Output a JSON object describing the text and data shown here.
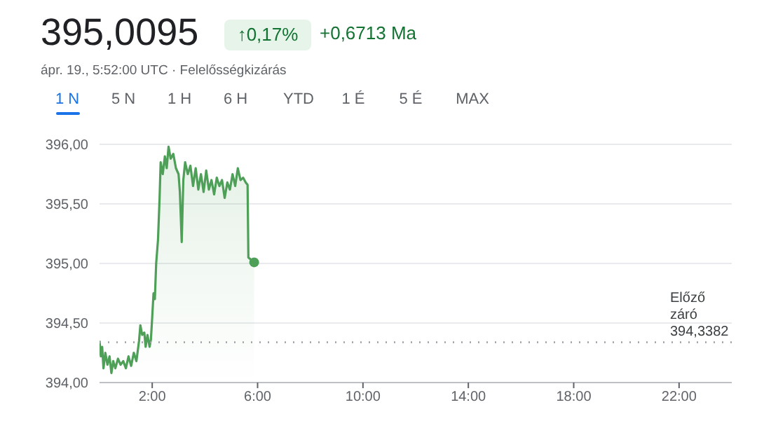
{
  "chart_data": {
    "type": "area",
    "title": "395,0095",
    "annotations": [
      "↑0,17%",
      "+0,6713 Ma",
      "ápr. 19., 5:52:00 UTC · Felelősségkizárás",
      "1 N",
      "5 N",
      "1 H",
      "6 H",
      "YTD",
      "1 É",
      "5 É",
      "MAX"
    ],
    "x": [
      0,
      0.05,
      0.1,
      0.15,
      0.22,
      0.3,
      0.38,
      0.45,
      0.52,
      0.6,
      0.7,
      0.8,
      0.9,
      1,
      1.1,
      1.2,
      1.3,
      1.4,
      1.5,
      1.55,
      1.62,
      1.7,
      1.75,
      1.82,
      1.9,
      1.95,
      2,
      2.05,
      2.1,
      2.15,
      2.22,
      2.28,
      2.32,
      2.4,
      2.48,
      2.55,
      2.62,
      2.7,
      2.8,
      2.9,
      3,
      3.05,
      3.12,
      3.18,
      3.25,
      3.35,
      3.45,
      3.55,
      3.65,
      3.75,
      3.85,
      3.95,
      4.05,
      4.15,
      4.25,
      4.35,
      4.45,
      4.55,
      4.65,
      4.75,
      4.85,
      4.95,
      5.05,
      5.15,
      5.25,
      5.35,
      5.45,
      5.55,
      5.62,
      5.65,
      5.87
    ],
    "series": [
      {
        "color": "#4e9f57",
        "values": [
          394.35,
          394.22,
          394.3,
          394.12,
          394.25,
          394.15,
          394.22,
          394.08,
          394.18,
          394.12,
          394.2,
          394.15,
          394.18,
          394.12,
          394.22,
          394.14,
          394.25,
          394.18,
          394.35,
          394.48,
          394.4,
          394.42,
          394.3,
          394.4,
          394.3,
          394.36,
          394.55,
          394.75,
          394.7,
          395,
          395.2,
          395.55,
          395.85,
          395.75,
          395.9,
          395.8,
          395.98,
          395.88,
          395.92,
          395.8,
          395.75,
          395.6,
          395.18,
          395.7,
          395.85,
          395.75,
          395.82,
          395.65,
          395.8,
          395.62,
          395.75,
          395.6,
          395.78,
          395.62,
          395.7,
          395.58,
          395.72,
          395.65,
          395.7,
          395.55,
          395.68,
          395.62,
          395.75,
          395.65,
          395.8,
          395.7,
          395.72,
          395.68,
          395.66,
          395.05,
          395.0095
        ]
      }
    ],
    "xlim": [
      0,
      24
    ],
    "xticks": [
      {
        "value": 2,
        "label": "2:00"
      },
      {
        "value": 6,
        "label": "6:00"
      },
      {
        "value": 10,
        "label": "10:00"
      },
      {
        "value": 14,
        "label": "14:00"
      },
      {
        "value": 18,
        "label": "18:00"
      },
      {
        "value": 22,
        "label": "22:00"
      }
    ],
    "ylim": [
      394,
      396
    ],
    "yticks": [
      {
        "value": 394,
        "label": "394,00"
      },
      {
        "value": 394.5,
        "label": "394,50"
      },
      {
        "value": 395,
        "label": "395,00"
      },
      {
        "value": 395.5,
        "label": "395,50"
      },
      {
        "value": 396,
        "label": "396,00"
      }
    ],
    "ref_lines": [
      {
        "axis": "y",
        "value": 394.3382,
        "label": "Előző záró 394,3382",
        "color": "#9aa0a6",
        "line_style": "dotted"
      }
    ],
    "grid": "y",
    "line_style": "solid"
  }
}
